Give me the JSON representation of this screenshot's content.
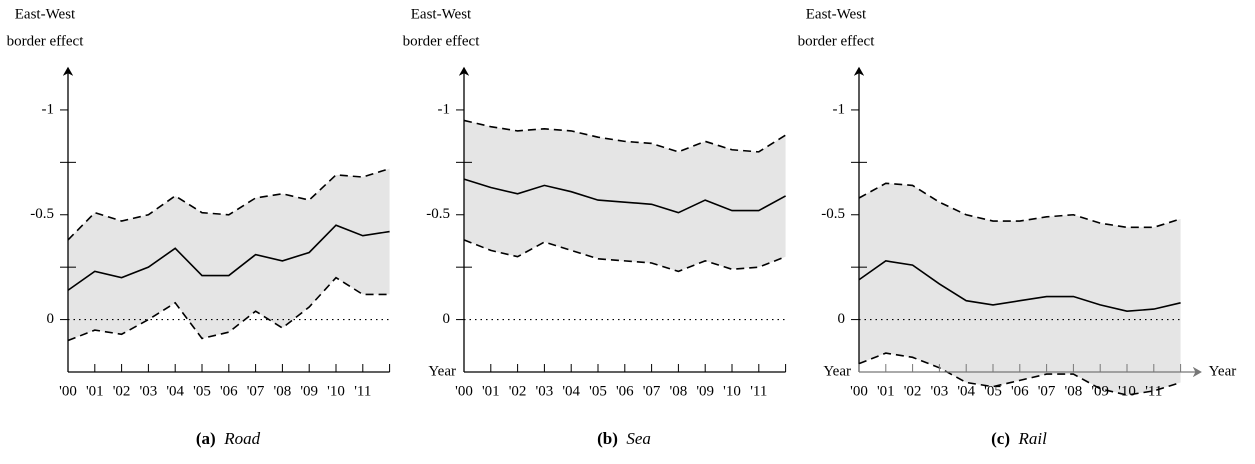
{
  "chart_data": [
    {
      "type": "line",
      "y_label": [
        "East-West",
        "border effect"
      ],
      "caption": {
        "label": "(a)",
        "name": "Road"
      },
      "categories": [
        "'00",
        "'01",
        "'02",
        "'03",
        "'04",
        "'05",
        "'06",
        "'07",
        "'08",
        "'09",
        "'10",
        "'11",
        null
      ],
      "series": [
        {
          "role": "estimate",
          "dashed": false,
          "color": "#000000",
          "values": [
            -0.14,
            -0.23,
            -0.2,
            -0.25,
            -0.34,
            -0.21,
            -0.21,
            -0.31,
            -0.28,
            -0.32,
            -0.45,
            -0.4,
            -0.42
          ]
        },
        {
          "role": "upper",
          "dashed": true,
          "color": "#000000",
          "values": [
            -0.38,
            -0.51,
            -0.47,
            -0.5,
            -0.59,
            -0.51,
            -0.5,
            -0.58,
            -0.6,
            -0.57,
            -0.69,
            -0.68,
            -0.72
          ]
        },
        {
          "role": "lower",
          "dashed": true,
          "color": "#000000",
          "values": [
            0.1,
            0.05,
            0.07,
            0,
            -0.08,
            0.09,
            0.06,
            -0.04,
            0.04,
            -0.06,
            -0.2,
            -0.12,
            -0.12
          ]
        }
      ],
      "band_color": "#e5e5e5",
      "ylim": [
        0.25,
        -1.2
      ],
      "yticks": [
        -1,
        -0.5,
        0
      ],
      "minor_yticks": [
        -0.75,
        -0.25
      ],
      "zero_line": true,
      "x_arrow": false
    },
    {
      "type": "line",
      "y_label": [
        "East-West",
        "border effect"
      ],
      "x_label": "Year",
      "caption": {
        "label": "(b)",
        "name": "Sea"
      },
      "categories": [
        "'00",
        "'01",
        "'02",
        "'03",
        "'04",
        "'05",
        "'06",
        "'07",
        "'08",
        "'09",
        "'10",
        "'11",
        null
      ],
      "series": [
        {
          "role": "estimate",
          "dashed": false,
          "color": "#000000",
          "values": [
            -0.67,
            -0.63,
            -0.6,
            -0.64,
            -0.61,
            -0.57,
            -0.56,
            -0.55,
            -0.51,
            -0.57,
            -0.52,
            -0.52,
            -0.59
          ]
        },
        {
          "role": "upper",
          "dashed": true,
          "color": "#000000",
          "values": [
            -0.95,
            -0.92,
            -0.9,
            -0.91,
            -0.9,
            -0.87,
            -0.85,
            -0.84,
            -0.8,
            -0.85,
            -0.81,
            -0.8,
            -0.88
          ]
        },
        {
          "role": "lower",
          "dashed": true,
          "color": "#000000",
          "values": [
            -0.38,
            -0.33,
            -0.3,
            -0.37,
            -0.33,
            -0.29,
            -0.28,
            -0.27,
            -0.23,
            -0.28,
            -0.24,
            -0.25,
            -0.3
          ]
        }
      ],
      "band_color": "#e5e5e5",
      "ylim": [
        0.25,
        -1.2
      ],
      "yticks": [
        -1,
        -0.5,
        0
      ],
      "minor_yticks": [
        -0.75,
        -0.25
      ],
      "zero_line": true,
      "x_arrow": false
    },
    {
      "type": "line",
      "y_label": [
        "East-West",
        "border effect"
      ],
      "x_label": "Year",
      "x_label_end": "Year",
      "caption": {
        "label": "(c)",
        "name": "Rail"
      },
      "categories": [
        "'00",
        "'01",
        "'02",
        "'03",
        "'04",
        "'05",
        "'06",
        "'07",
        "'08",
        "'09",
        "'10",
        "'11",
        null
      ],
      "series": [
        {
          "role": "estimate",
          "dashed": false,
          "color": "#000000",
          "values": [
            -0.19,
            -0.28,
            -0.26,
            -0.17,
            -0.09,
            -0.07,
            -0.09,
            -0.11,
            -0.11,
            -0.07,
            -0.04,
            -0.05,
            -0.08
          ]
        },
        {
          "role": "upper",
          "dashed": true,
          "color": "#000000",
          "values": [
            -0.58,
            -0.65,
            -0.64,
            -0.56,
            -0.5,
            -0.47,
            -0.47,
            -0.49,
            -0.5,
            -0.46,
            -0.44,
            -0.44,
            -0.48
          ]
        },
        {
          "role": "lower",
          "dashed": true,
          "color": "#000000",
          "values": [
            0.21,
            0.16,
            0.18,
            0.23,
            0.3,
            0.32,
            0.29,
            0.26,
            0.26,
            0.33,
            0.36,
            0.34,
            0.3
          ]
        }
      ],
      "band_color": "#e5e5e5",
      "ylim": [
        0.25,
        -1.2
      ],
      "yticks": [
        -1,
        -0.5,
        0
      ],
      "minor_yticks": [
        -0.75,
        -0.25
      ],
      "zero_line": true,
      "x_arrow": true
    }
  ]
}
